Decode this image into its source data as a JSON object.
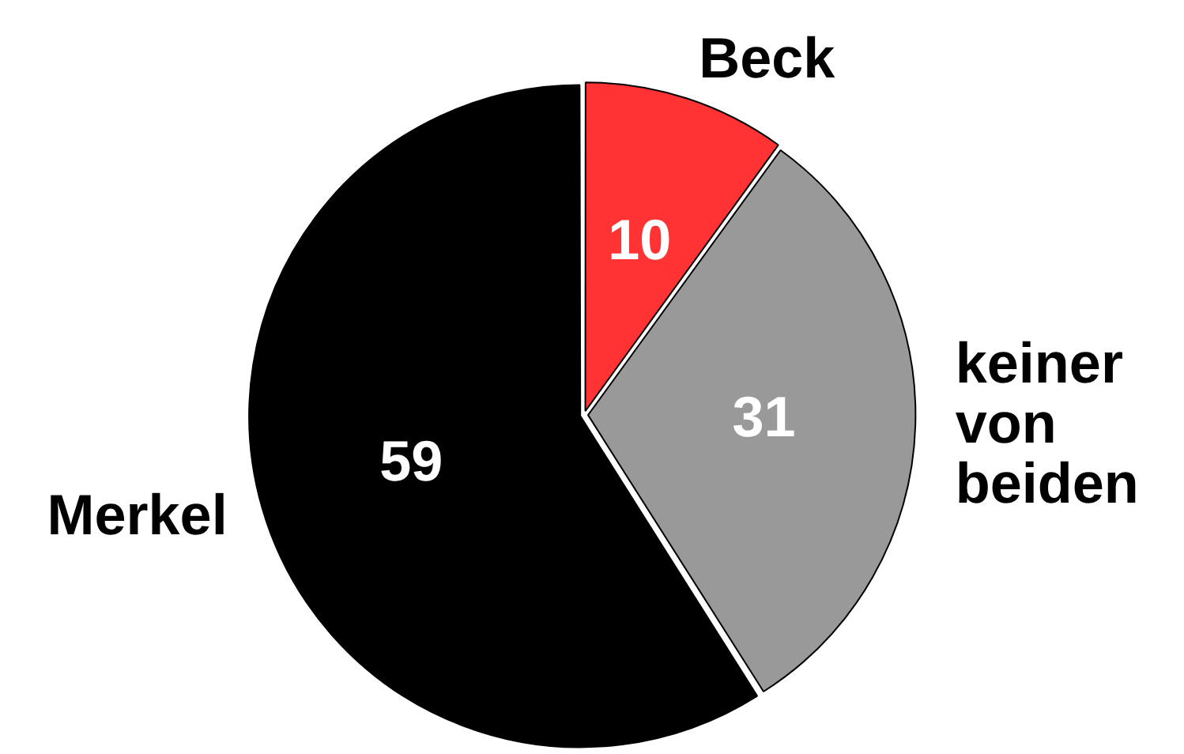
{
  "chart_data": {
    "type": "pie",
    "categories": [
      "Beck",
      "keiner von beiden",
      "Merkel"
    ],
    "values": [
      10,
      31,
      59
    ],
    "colors": [
      "#ff3333",
      "#999999",
      "#000000"
    ],
    "data_labels": true,
    "legend": false
  }
}
